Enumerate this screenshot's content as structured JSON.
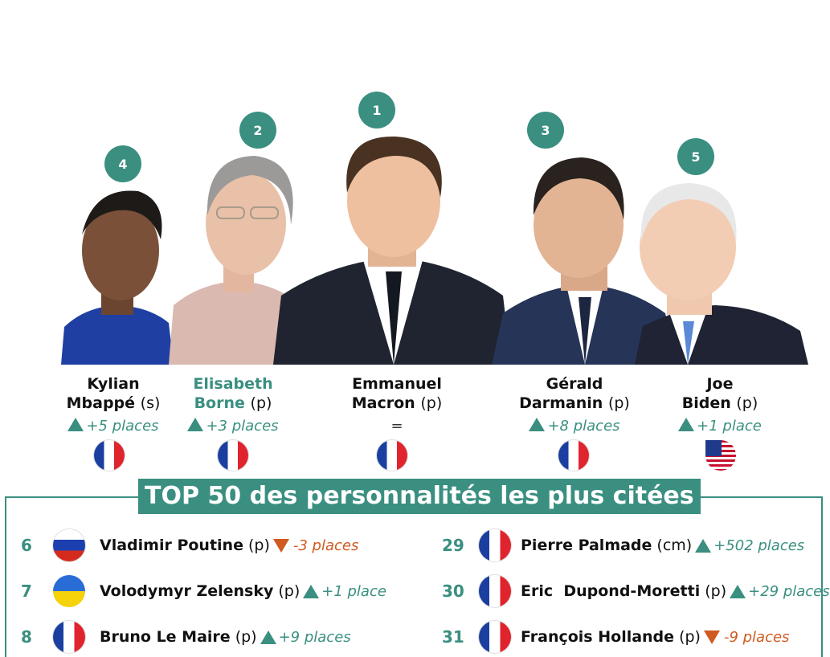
{
  "top5": [
    {
      "rank": "4",
      "first": "Kylian",
      "last": "Mbappé",
      "role": "(s)",
      "delta": "+5 places",
      "direction": "up",
      "flag": "france"
    },
    {
      "rank": "2",
      "first": "Elisabeth",
      "last": "Borne",
      "role": "(p)",
      "delta": "+3 places",
      "direction": "up",
      "flag": "france"
    },
    {
      "rank": "1",
      "first": "Emmanuel",
      "last": "Macron",
      "role": "(p)",
      "delta": "=",
      "direction": "same",
      "flag": "france"
    },
    {
      "rank": "3",
      "first": "Gérald",
      "last": "Darmanin",
      "role": "(p)",
      "delta": "+8 places",
      "direction": "up",
      "flag": "france"
    },
    {
      "rank": "5",
      "first": "Joe",
      "last": "Biden",
      "role": "(p)",
      "delta": "+1 place",
      "direction": "up",
      "flag": "usa"
    }
  ],
  "banner": "TOP 50 des personnalités les plus citées",
  "list_left": [
    {
      "rank": "6",
      "name": "Vladimir Poutine",
      "role": "(p)",
      "delta": "-3 places",
      "direction": "down",
      "flag": "russia"
    },
    {
      "rank": "7",
      "name": "Volodymyr Zelensky",
      "role": "(p)",
      "delta": "+1 place",
      "direction": "up",
      "flag": "ukraine"
    },
    {
      "rank": "8",
      "name": "Bruno Le Maire",
      "role": "(p)",
      "delta": "+9 places",
      "direction": "up",
      "flag": "france"
    }
  ],
  "list_right": [
    {
      "rank": "29",
      "name": "Pierre Palmade",
      "role": "(cm)",
      "delta": "+502 places",
      "direction": "up",
      "flag": "france"
    },
    {
      "rank": "30",
      "name": "Eric  Dupond-Moretti",
      "role": "(p)",
      "delta": "+29 places",
      "direction": "up",
      "flag": "france"
    },
    {
      "rank": "31",
      "name": "François Hollande",
      "role": "(p)",
      "delta": "-9 places",
      "direction": "down",
      "flag": "france"
    }
  ],
  "colors": {
    "accent": "#3a8f80",
    "down": "#d05a1f"
  }
}
